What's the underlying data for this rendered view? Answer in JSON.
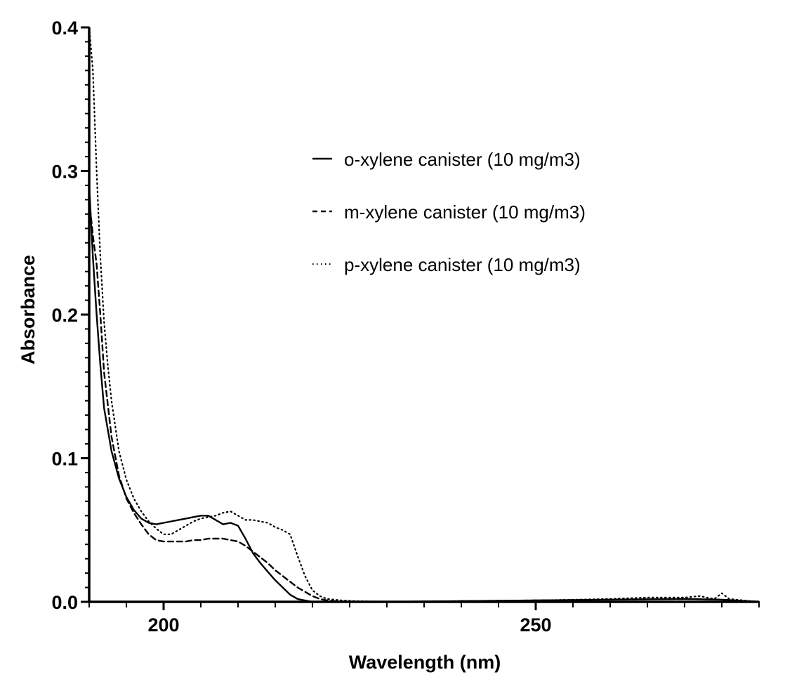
{
  "chart_data": {
    "type": "line",
    "xlabel": "Wavelength (nm)",
    "ylabel": "Absorbance",
    "xlim": [
      190,
      280
    ],
    "ylim": [
      0,
      0.4
    ],
    "x_ticks": [
      200,
      250
    ],
    "y_ticks": [
      0.0,
      0.1,
      0.2,
      0.3,
      0.4
    ],
    "x_tick_labels": [
      "200",
      "250"
    ],
    "y_tick_labels": [
      "0.0",
      "0.1",
      "0.2",
      "0.3",
      "0.4"
    ],
    "grid": false,
    "legend_position": "top-right",
    "series": [
      {
        "name": "o-xylene canister (10 mg/m3)",
        "style": "solid",
        "color": "#000000",
        "x": [
          190,
          190.5,
          191,
          191.5,
          192,
          193,
          194,
          195,
          196,
          197,
          198,
          199,
          200,
          201,
          202,
          203,
          204,
          205,
          206,
          207,
          208,
          209,
          210,
          211,
          212,
          213,
          214,
          215,
          216,
          217,
          218,
          219,
          220,
          222,
          225,
          230,
          240,
          250,
          260,
          270,
          275,
          280
        ],
        "y": [
          0.29,
          0.24,
          0.2,
          0.165,
          0.135,
          0.105,
          0.086,
          0.073,
          0.064,
          0.058,
          0.055,
          0.054,
          0.055,
          0.056,
          0.057,
          0.058,
          0.059,
          0.06,
          0.06,
          0.057,
          0.054,
          0.055,
          0.053,
          0.044,
          0.034,
          0.027,
          0.021,
          0.015,
          0.01,
          0.005,
          0.002,
          0.001,
          0.0,
          0.0,
          0.0,
          0.0,
          0.0005,
          0.001,
          0.0015,
          0.002,
          0.0015,
          0.0
        ]
      },
      {
        "name": "m-xylene canister (10 mg/m3)",
        "style": "dashed",
        "color": "#000000",
        "x": [
          190,
          190.5,
          191,
          191.5,
          192,
          193,
          194,
          195,
          196,
          197,
          198,
          199,
          200,
          201,
          202,
          203,
          204,
          205,
          206,
          207,
          208,
          209,
          210,
          211,
          212,
          213,
          214,
          215,
          216,
          217,
          218,
          219,
          220,
          221,
          222,
          223,
          225,
          230,
          240,
          250,
          260,
          270,
          275,
          280
        ],
        "y": [
          0.28,
          0.255,
          0.235,
          0.2,
          0.16,
          0.115,
          0.088,
          0.072,
          0.062,
          0.054,
          0.047,
          0.043,
          0.042,
          0.042,
          0.042,
          0.042,
          0.043,
          0.043,
          0.044,
          0.044,
          0.044,
          0.043,
          0.042,
          0.039,
          0.035,
          0.031,
          0.027,
          0.022,
          0.018,
          0.014,
          0.01,
          0.007,
          0.004,
          0.002,
          0.001,
          0.0005,
          0.0,
          0.0,
          0.0005,
          0.001,
          0.0015,
          0.002,
          0.0015,
          0.0
        ]
      },
      {
        "name": "p-xylene canister (10 mg/m3)",
        "style": "dotted",
        "color": "#000000",
        "x": [
          190,
          190.5,
          191,
          191.5,
          192,
          192.5,
          193,
          194,
          195,
          196,
          197,
          198,
          199,
          200,
          201,
          202,
          203,
          204,
          205,
          206,
          207,
          208,
          209,
          210,
          211,
          212,
          213,
          214,
          215,
          216,
          217,
          218,
          219,
          220,
          221,
          222,
          224,
          226,
          230,
          240,
          250,
          260,
          265,
          270,
          272,
          274,
          275,
          276,
          278,
          280
        ],
        "y": [
          0.4,
          0.37,
          0.3,
          0.24,
          0.195,
          0.165,
          0.14,
          0.105,
          0.085,
          0.072,
          0.063,
          0.056,
          0.051,
          0.047,
          0.047,
          0.05,
          0.053,
          0.056,
          0.058,
          0.059,
          0.06,
          0.062,
          0.063,
          0.06,
          0.057,
          0.057,
          0.056,
          0.055,
          0.052,
          0.05,
          0.047,
          0.032,
          0.018,
          0.008,
          0.004,
          0.002,
          0.001,
          0.0005,
          0.0,
          0.0005,
          0.001,
          0.002,
          0.003,
          0.003,
          0.004,
          0.002,
          0.006,
          0.002,
          0.001,
          0.0
        ]
      }
    ]
  }
}
